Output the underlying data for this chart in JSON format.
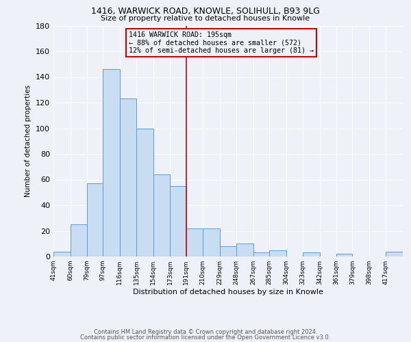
{
  "title1": "1416, WARWICK ROAD, KNOWLE, SOLIHULL, B93 9LG",
  "title2": "Size of property relative to detached houses in Knowle",
  "xlabel": "Distribution of detached houses by size in Knowle",
  "ylabel": "Number of detached properties",
  "bin_labels": [
    "41sqm",
    "60sqm",
    "79sqm",
    "97sqm",
    "116sqm",
    "135sqm",
    "154sqm",
    "173sqm",
    "191sqm",
    "210sqm",
    "229sqm",
    "248sqm",
    "267sqm",
    "285sqm",
    "304sqm",
    "323sqm",
    "342sqm",
    "361sqm",
    "379sqm",
    "398sqm",
    "417sqm"
  ],
  "bin_edges": [
    41,
    60,
    79,
    97,
    116,
    135,
    154,
    173,
    191,
    210,
    229,
    248,
    267,
    285,
    304,
    323,
    342,
    361,
    379,
    398,
    417
  ],
  "bar_heights": [
    4,
    25,
    57,
    146,
    123,
    100,
    64,
    55,
    22,
    22,
    8,
    10,
    3,
    5,
    0,
    3,
    0,
    2,
    0,
    0,
    4
  ],
  "bar_color": "#c8ddf2",
  "bar_edge_color": "#5b9bd5",
  "vline_x": 191,
  "vline_color": "#cc0000",
  "annotation_title": "1416 WARWICK ROAD: 195sqm",
  "annotation_line1": "← 88% of detached houses are smaller (572)",
  "annotation_line2": "12% of semi-detached houses are larger (81) →",
  "annotation_box_color": "#cc0000",
  "annotation_text_color": "#000000",
  "ylim": [
    0,
    180
  ],
  "yticks": [
    0,
    20,
    40,
    60,
    80,
    100,
    120,
    140,
    160,
    180
  ],
  "footer1": "Contains HM Land Registry data © Crown copyright and database right 2024.",
  "footer2": "Contains public sector information licensed under the Open Government Licence v3.0.",
  "bg_color": "#eef2f8",
  "grid_color": "#ffffff"
}
